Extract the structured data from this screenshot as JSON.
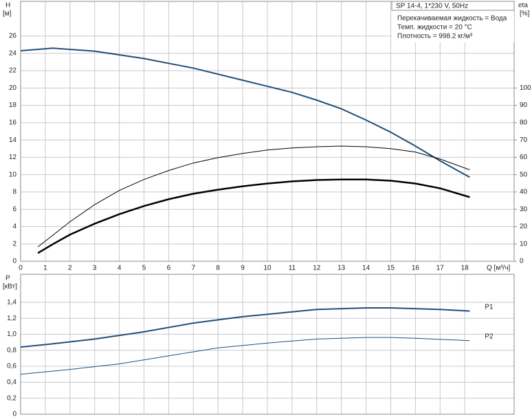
{
  "chart_data": [
    {
      "type": "line",
      "title": "SP 14-4, 1*230 V, 50Hz",
      "annotations": [
        "Перекачиваемая жидкость = Вода",
        "Темп. жидкости = 20 °C",
        "Плотность = 998.2 кг/м³"
      ],
      "xlabel": "Q [м³/ч]",
      "ylabel": "H",
      "ylabel_unit": "[м]",
      "y2label": "eta",
      "y2label_unit": "[%]",
      "xlim": [
        0,
        20
      ],
      "xticks": [
        0,
        1,
        2,
        3,
        4,
        5,
        6,
        7,
        8,
        9,
        10,
        11,
        12,
        13,
        14,
        15,
        16,
        17,
        18
      ],
      "ylim": [
        0,
        30
      ],
      "yticks": [
        0,
        2,
        4,
        6,
        8,
        10,
        12,
        14,
        16,
        18,
        20,
        22,
        24,
        26
      ],
      "y2lim": [
        0,
        150
      ],
      "y2ticks": [
        0,
        10,
        20,
        30,
        40,
        50,
        60,
        70,
        80,
        90,
        100
      ],
      "grid": true,
      "series": [
        {
          "color": "#1f4e79",
          "x": [
            0,
            1.3,
            3,
            5,
            7,
            9,
            11,
            12,
            13,
            14,
            15,
            16,
            17,
            18.2
          ],
          "values": [
            24.3,
            24.6,
            24.25,
            23.4,
            22.3,
            20.9,
            19.5,
            18.6,
            17.6,
            16.3,
            14.9,
            13.3,
            11.6,
            9.7
          ]
        },
        {
          "color": "#000000",
          "axis": "y2",
          "x": [
            0.7,
            1.3,
            2,
            3,
            4,
            5,
            6,
            7,
            8,
            9,
            10,
            11,
            12,
            13,
            14,
            15,
            16,
            17,
            18.2
          ],
          "values": [
            8.3,
            15,
            22.8,
            32.7,
            40.9,
            47.2,
            52.4,
            56.7,
            59.8,
            62.2,
            64.2,
            65.4,
            66.1,
            66.5,
            66.1,
            65,
            63,
            59,
            52.8
          ]
        },
        {
          "color": "#000000",
          "axis": "y2",
          "x": [
            0.7,
            1.3,
            2,
            3,
            4,
            5,
            6,
            7,
            8,
            9,
            10,
            11,
            12,
            13,
            14,
            15,
            16,
            17,
            18.2
          ],
          "values": [
            4.7,
            9.8,
            15.4,
            21.7,
            27.2,
            31.9,
            35.8,
            39,
            41.3,
            43.3,
            44.9,
            46.1,
            46.9,
            47.2,
            47.2,
            46.5,
            44.9,
            42.1,
            37
          ]
        }
      ]
    },
    {
      "type": "line",
      "ylabel": "P",
      "ylabel_unit": "[кВт]",
      "xlim": [
        0,
        20
      ],
      "ylim": [
        0,
        1.75
      ],
      "yticks": [
        0,
        {
          "value": 0.2,
          "label": "0,2"
        },
        {
          "value": 0.4,
          "label": "0,4"
        },
        {
          "value": 0.6,
          "label": "0,6"
        },
        {
          "value": 0.8,
          "label": "0,8"
        },
        {
          "value": 1.0,
          "label": "1,0"
        },
        {
          "value": 1.2,
          "label": "1,2"
        },
        {
          "value": 1.4,
          "label": "1,4"
        }
      ],
      "grid": true,
      "series": [
        {
          "name": "P1",
          "color": "#1f4e79",
          "x": [
            0,
            1.3,
            3,
            5,
            7,
            9,
            11,
            12,
            13,
            14,
            15,
            16,
            17,
            18.2
          ],
          "values": [
            0.84,
            0.88,
            0.94,
            1.03,
            1.14,
            1.22,
            1.28,
            1.31,
            1.32,
            1.33,
            1.33,
            1.32,
            1.31,
            1.29
          ]
        },
        {
          "name": "P2",
          "color": "#1f4e79",
          "x": [
            0,
            2,
            4,
            6,
            8,
            10,
            12,
            14,
            15,
            16,
            18.2
          ],
          "values": [
            0.5,
            0.56,
            0.63,
            0.73,
            0.83,
            0.89,
            0.94,
            0.96,
            0.96,
            0.95,
            0.92
          ]
        }
      ]
    }
  ]
}
